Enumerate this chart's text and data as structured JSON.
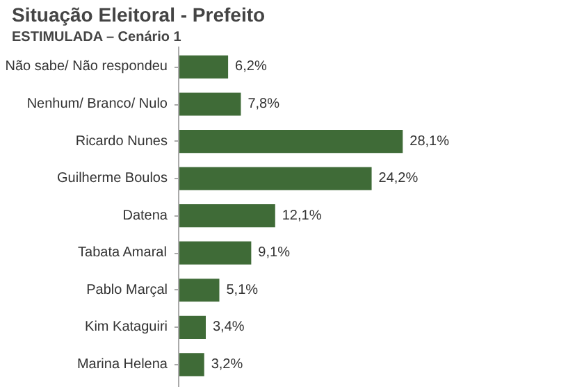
{
  "chart_data": {
    "type": "bar",
    "orientation": "horizontal",
    "title": "Situação Eleitoral - Prefeito",
    "subtitle": "ESTIMULADA – Cenário 1",
    "categories": [
      "Não sabe/ Não respondeu",
      "Nenhum/ Branco/ Nulo",
      "Ricardo Nunes",
      "Guilherme Boulos",
      "Datena",
      "Tabata Amaral",
      "Pablo Marçal",
      "Kim Kataguiri",
      "Marina Helena"
    ],
    "values": [
      6.2,
      7.8,
      28.1,
      24.2,
      12.1,
      9.1,
      5.1,
      3.4,
      3.2
    ],
    "value_labels": [
      "6,2%",
      "7,8%",
      "28,1%",
      "24,2%",
      "12,1%",
      "9,1%",
      "5,1%",
      "3,4%",
      "3,2%"
    ],
    "color": "#3f6b37",
    "grid": false
  }
}
